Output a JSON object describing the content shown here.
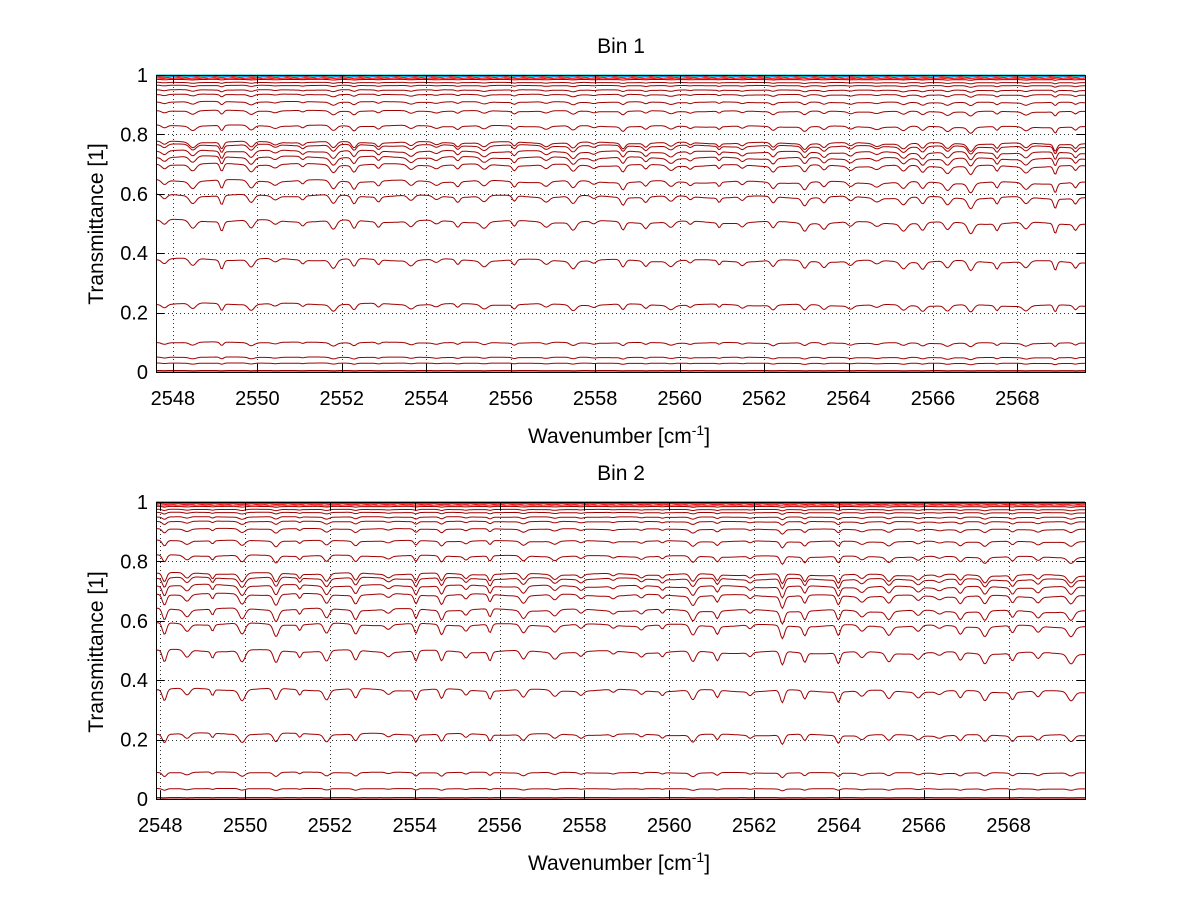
{
  "chart_data": [
    {
      "type": "line",
      "title": "Bin 1",
      "xlabel_base": "Wavenumber [cm",
      "xlabel_sup": "-1",
      "xlabel_close": "]",
      "ylabel": "Transmittance [1]",
      "xlim": [
        2547.6,
        2569.6
      ],
      "ylim": [
        0,
        1
      ],
      "xticks": [
        2548,
        2550,
        2552,
        2554,
        2556,
        2558,
        2560,
        2562,
        2564,
        2566,
        2568
      ],
      "xtick_labels": [
        "2548",
        "2550",
        "2552",
        "2554",
        "2556",
        "2558",
        "2560",
        "2562",
        "2564",
        "2566",
        "2568"
      ],
      "yticks": [
        0,
        0.2,
        0.4,
        0.6,
        0.8,
        1
      ],
      "ytick_labels": [
        "0",
        "0.2",
        "0.4",
        "0.6",
        "0.8",
        "1"
      ],
      "grid": true,
      "line_color": "#a00000",
      "top_colors": [
        "#00c8c8",
        "#2060ff",
        "#ff0000"
      ],
      "series_levels": [
        0.0,
        0.005,
        0.03,
        0.05,
        0.1,
        0.23,
        0.38,
        0.51,
        0.595,
        0.645,
        0.7,
        0.725,
        0.745,
        0.765,
        0.775,
        0.83,
        0.88,
        0.91,
        0.935,
        0.95,
        0.965,
        0.975,
        0.985,
        0.995,
        1.0
      ],
      "dip_depth": 0.03
    },
    {
      "type": "line",
      "title": "Bin 2",
      "xlabel_base": "Wavenumber [cm",
      "xlabel_sup": "-1",
      "xlabel_close": "]",
      "ylabel": "Transmittance [1]",
      "xlim": [
        2547.9,
        2569.8
      ],
      "ylim": [
        0,
        1
      ],
      "xticks": [
        2548,
        2550,
        2552,
        2554,
        2556,
        2558,
        2560,
        2562,
        2564,
        2566,
        2568
      ],
      "xtick_labels": [
        "2548",
        "2550",
        "2552",
        "2554",
        "2556",
        "2558",
        "2560",
        "2562",
        "2564",
        "2566",
        "2568"
      ],
      "yticks": [
        0,
        0.2,
        0.4,
        0.6,
        0.8,
        1
      ],
      "ytick_labels": [
        "0",
        "0.2",
        "0.4",
        "0.6",
        "0.8",
        "1"
      ],
      "grid": true,
      "line_color": "#a00000",
      "top_colors": [
        "#2060ff",
        "#ff0000",
        "#ff3030"
      ],
      "series_levels": [
        0.0,
        0.005,
        0.035,
        0.09,
        0.22,
        0.37,
        0.5,
        0.59,
        0.64,
        0.69,
        0.72,
        0.745,
        0.76,
        0.82,
        0.87,
        0.91,
        0.935,
        0.95,
        0.965,
        0.975,
        0.985,
        0.995,
        1.0
      ],
      "dip_depth": 0.04
    }
  ]
}
